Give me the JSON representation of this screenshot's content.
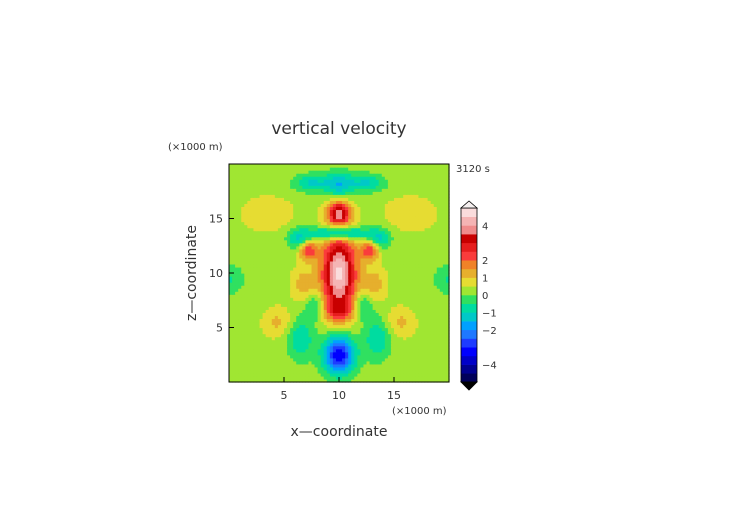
{
  "chart_data": {
    "type": "heatmap",
    "title": "vertical velocity",
    "time_label": "3120 s",
    "xlabel": "x—coordinate",
    "ylabel": "z—coordinate",
    "x_unit": "(×1000 m)",
    "y_unit": "(×1000 m)",
    "xlim": [
      0,
      20
    ],
    "ylim": [
      0,
      20
    ],
    "x_ticks": [
      5,
      10,
      15
    ],
    "y_ticks": [
      5,
      10,
      15
    ],
    "colorbar": {
      "levels": [
        -5,
        -4.5,
        -4,
        -3.5,
        -3,
        -2.5,
        -2,
        -1.5,
        -1,
        -0.5,
        0,
        0.5,
        1,
        1.5,
        2,
        2.5,
        3,
        3.5,
        4,
        4.5,
        5
      ],
      "tick_values": [
        4,
        2,
        1,
        0,
        -1,
        -2,
        -4
      ],
      "tick_labels": [
        "4",
        "2",
        "1",
        "0",
        "−1",
        "−2",
        "−4"
      ],
      "colors": [
        "#00005a",
        "#000090",
        "#0000c8",
        "#0000ff",
        "#1e3cff",
        "#1e78ff",
        "#00a0ff",
        "#00c8c8",
        "#00dca0",
        "#30e060",
        "#a0e632",
        "#e6dc32",
        "#e6af2d",
        "#f08228",
        "#fa3c3c",
        "#e61e1e",
        "#c80000",
        "#f08c8c",
        "#f5b4b4",
        "#fadcdc"
      ]
    },
    "features": [
      {
        "name": "central updraft core",
        "x": 10,
        "z": 10,
        "w": 4.0
      },
      {
        "name": "upper updraft cap",
        "x": 10,
        "z": 15.5,
        "w": 3.0
      },
      {
        "name": "left flank updraft",
        "x": 7.2,
        "z": 12.2,
        "w": 2.0
      },
      {
        "name": "right flank updraft",
        "x": 12.8,
        "z": 12.2,
        "w": 2.0
      },
      {
        "name": "downdraft below cap",
        "x": 10,
        "z": 13.8,
        "w": -2.5
      },
      {
        "name": "upper downdraft",
        "x": 10,
        "z": 18.0,
        "w": -1.5
      },
      {
        "name": "low-level downdraft",
        "x": 10,
        "z": 2.5,
        "w": -3.5
      }
    ]
  }
}
